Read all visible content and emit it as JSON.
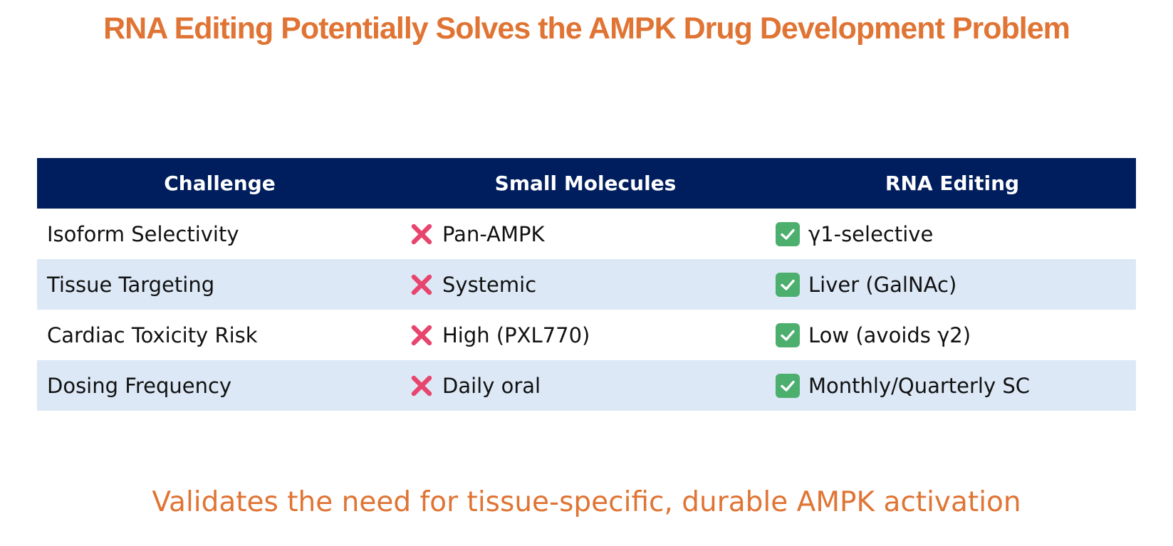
{
  "title": "RNA Editing Potentially Solves the AMPK Drug Development Problem",
  "colors": {
    "accent": "#E07434",
    "header_bg": "#001E5E",
    "header_text": "#FFFFFF",
    "row_alt_bg": "#DCE8F6",
    "row_bg": "#FFFFFF",
    "cross": "#E8456E",
    "check_bg": "#4CAF6E"
  },
  "table": {
    "headers": [
      "Challenge",
      "Small Molecules",
      "RNA Editing"
    ],
    "rows": [
      {
        "challenge": "Isoform Selectivity",
        "small_molecules": "Pan-AMPK",
        "rna_editing": "γ1-selective"
      },
      {
        "challenge": "Tissue Targeting",
        "small_molecules": "Systemic",
        "rna_editing": "Liver (GalNAc)"
      },
      {
        "challenge": "Cardiac Toxicity Risk",
        "small_molecules": "High (PXL770)",
        "rna_editing": "Low (avoids γ2)"
      },
      {
        "challenge": "Dosing Frequency",
        "small_molecules": "Daily oral",
        "rna_editing": "Monthly/Quarterly SC"
      }
    ],
    "icons": {
      "negative": "cross-mark-icon",
      "positive": "check-mark-icon"
    }
  },
  "footer": "Validates the need for tissue-specific, durable AMPK activation"
}
